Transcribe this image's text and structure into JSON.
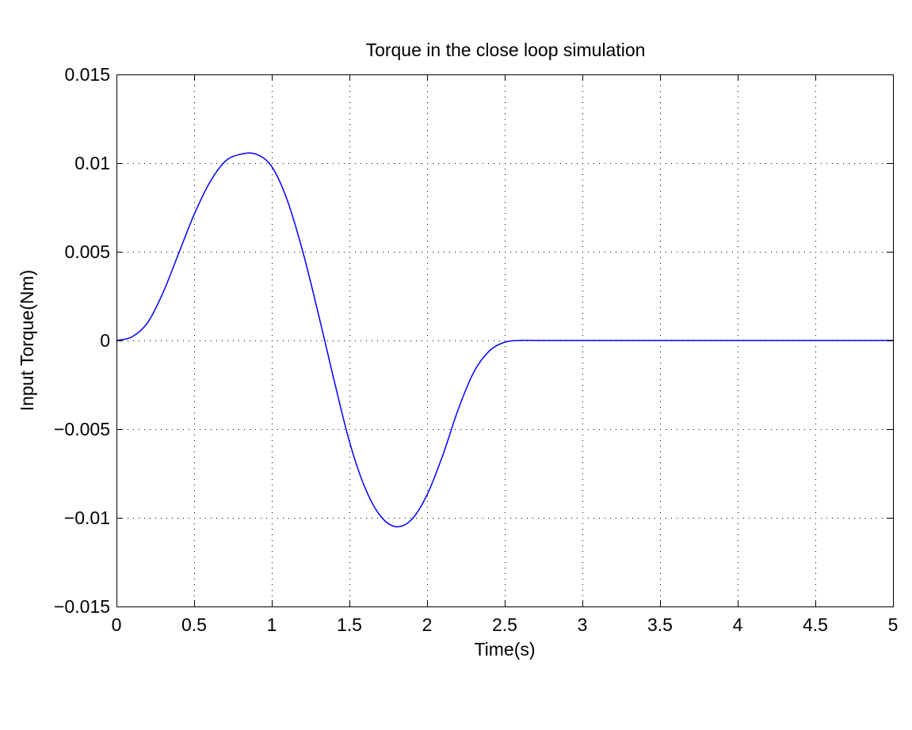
{
  "chart_data": {
    "type": "line",
    "title": "Torque in the close loop simulation",
    "xlabel": "Time(s)",
    "ylabel": "Input Torque(Nm)",
    "xlim": [
      0,
      5
    ],
    "ylim": [
      -0.015,
      0.015
    ],
    "grid": true,
    "grid_style": "dotted",
    "x_ticks": [
      0,
      0.5,
      1,
      1.5,
      2,
      2.5,
      3,
      3.5,
      4,
      4.5,
      5
    ],
    "x_tick_labels": [
      "0",
      "0.5",
      "1",
      "1.5",
      "2",
      "2.5",
      "3",
      "3.5",
      "4",
      "4.5",
      "5"
    ],
    "y_ticks": [
      -0.015,
      -0.01,
      -0.005,
      0,
      0.005,
      0.01,
      0.015
    ],
    "y_tick_labels": [
      "−0.015",
      "−0.01",
      "−0.005",
      "0",
      "0.005",
      "0.01",
      "0.015"
    ],
    "series": [
      {
        "color": "#0000ff",
        "x": [
          0,
          0.1,
          0.2,
          0.3,
          0.4,
          0.5,
          0.6,
          0.7,
          0.8,
          0.9,
          1.0,
          1.1,
          1.2,
          1.3,
          1.4,
          1.5,
          1.6,
          1.7,
          1.8,
          1.9,
          2.0,
          2.1,
          2.2,
          2.3,
          2.4,
          2.5,
          2.6,
          2.7,
          2.8,
          3.0,
          3.5,
          4.0,
          4.5,
          5.0
        ],
        "y": [
          0,
          0.0002,
          0.001,
          0.0027,
          0.0049,
          0.0071,
          0.0089,
          0.0101,
          0.0105,
          0.0105,
          0.0098,
          0.0079,
          0.005,
          0.0015,
          -0.0022,
          -0.0057,
          -0.0083,
          -0.0099,
          -0.0105,
          -0.0101,
          -0.0087,
          -0.0065,
          -0.0039,
          -0.0018,
          -0.0006,
          -0.0001,
          0,
          0,
          0,
          0,
          0,
          0,
          0,
          0
        ]
      }
    ]
  }
}
